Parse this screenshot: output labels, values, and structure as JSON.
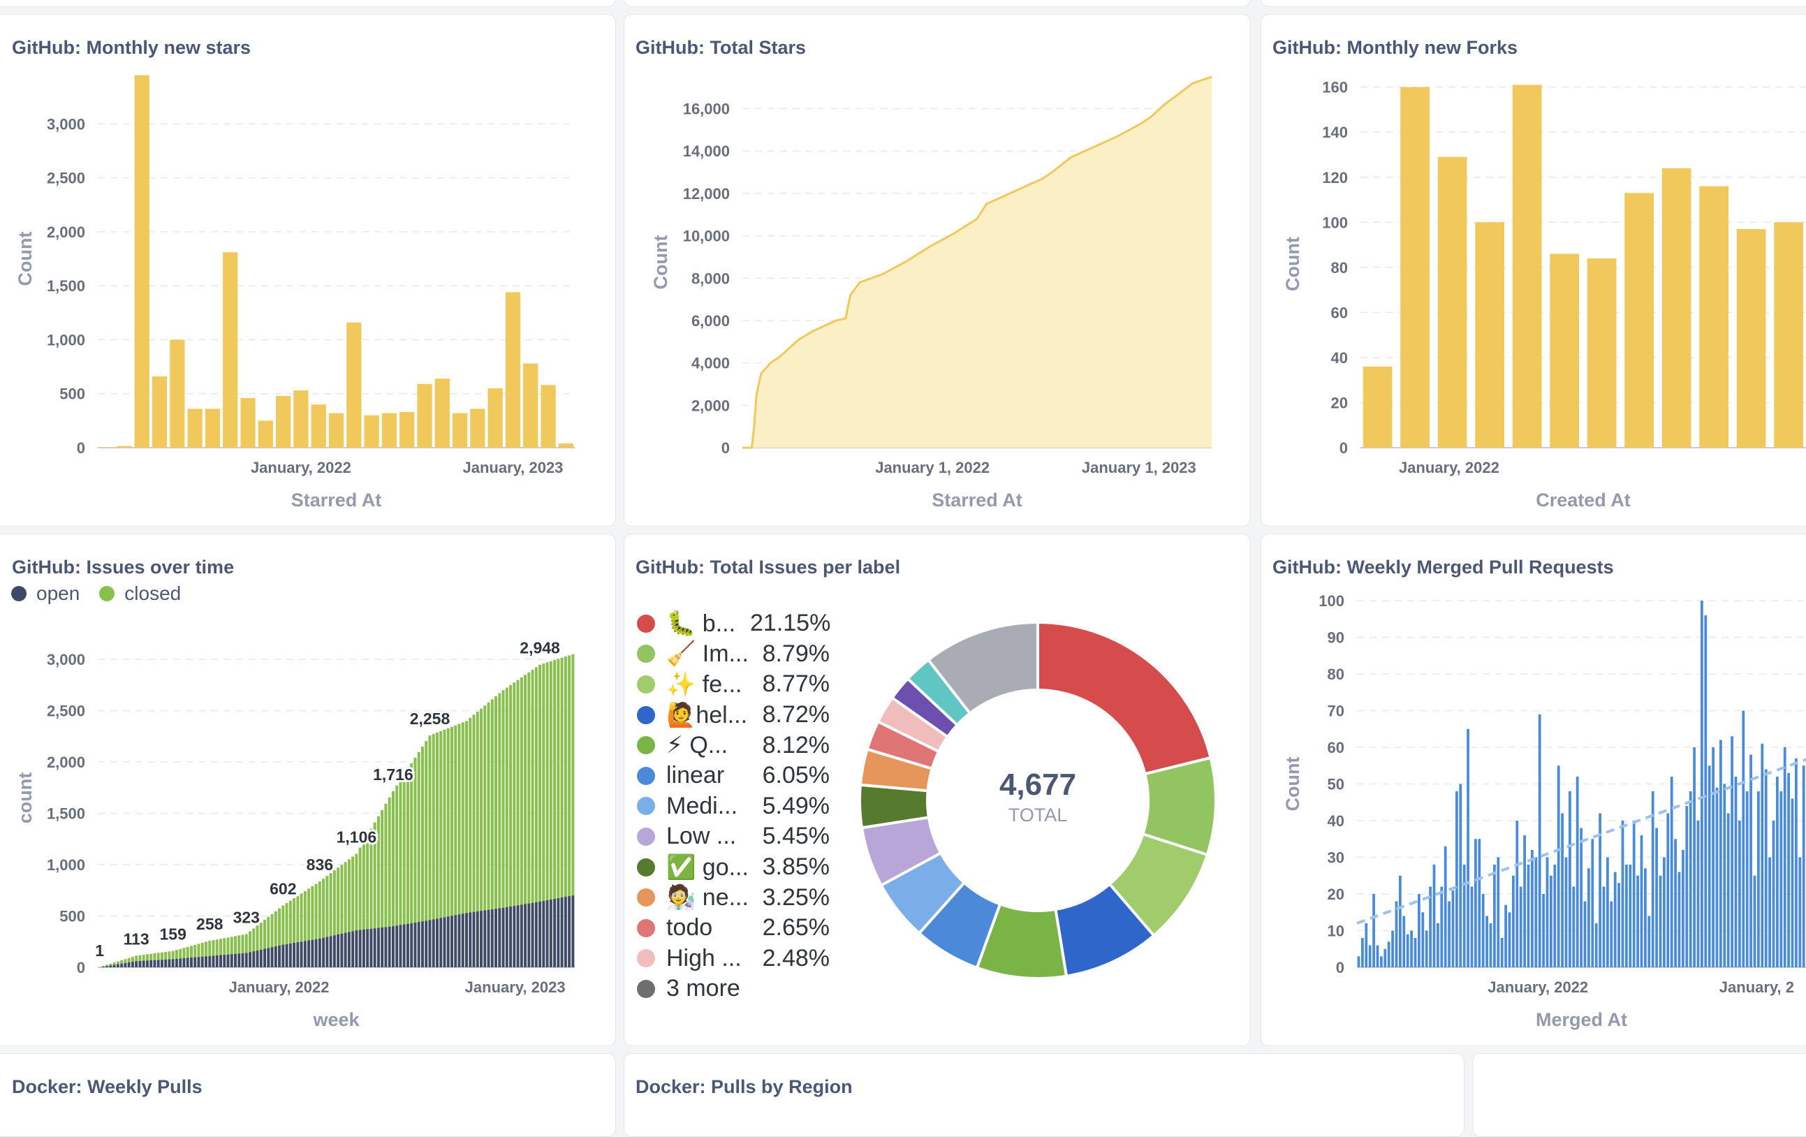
{
  "colors": {
    "yellow": "#f1c85b",
    "yellow_fill": "#fbefc6",
    "navy": "#3f4a66",
    "green": "#88bf4d",
    "blue": "#4a8bd9"
  },
  "cards": {
    "monthly_stars": {
      "title": "GitHub: Monthly new stars"
    },
    "total_stars": {
      "title": "GitHub: Total Stars"
    },
    "monthly_forks": {
      "title": "GitHub: Monthly new Forks"
    },
    "issues_over_time": {
      "title": "GitHub: Issues over time"
    },
    "issues_per_label": {
      "title": "GitHub: Total Issues per label"
    },
    "merged_prs": {
      "title": "GitHub: Weekly Merged Pull Requests"
    },
    "docker_weekly": {
      "title": "Docker: Weekly Pulls"
    },
    "docker_region": {
      "title": "Docker: Pulls by Region"
    }
  },
  "chart_data": [
    {
      "id": "monthly_stars",
      "type": "bar",
      "title": "GitHub: Monthly new stars",
      "xlabel": "Starred At",
      "ylabel": "Count",
      "ylim": [
        0,
        3500
      ],
      "yticks": [
        0,
        500,
        1000,
        1500,
        2000,
        2500,
        3000
      ],
      "ytick_labels": [
        "0",
        "500",
        "1,000",
        "1,500",
        "2,000",
        "2,500",
        "3,000"
      ],
      "xtick_labels": [
        {
          "label": "January, 2022",
          "index": 11.5
        },
        {
          "label": "January, 2023",
          "index": 23.5
        }
      ],
      "values": [
        5,
        15,
        3450,
        660,
        1000,
        360,
        360,
        1810,
        460,
        250,
        480,
        530,
        400,
        320,
        1160,
        300,
        320,
        330,
        590,
        640,
        320,
        360,
        550,
        1440,
        780,
        580,
        40
      ]
    },
    {
      "id": "total_stars",
      "type": "area",
      "title": "GitHub: Total Stars",
      "xlabel": "Starred At",
      "ylabel": "Count",
      "ylim": [
        0,
        17500
      ],
      "yticks": [
        0,
        2000,
        4000,
        6000,
        8000,
        10000,
        12000,
        14000,
        16000
      ],
      "ytick_labels": [
        "0",
        "2,000",
        "4,000",
        "6,000",
        "8,000",
        "10,000",
        "12,000",
        "14,000",
        "16,000"
      ],
      "xtick_labels": [
        {
          "label": "January 1, 2022",
          "t": 0.405
        },
        {
          "label": "January 1, 2023",
          "t": 0.845
        }
      ],
      "points": [
        [
          0,
          0
        ],
        [
          0.02,
          0
        ],
        [
          0.025,
          1000
        ],
        [
          0.03,
          2500
        ],
        [
          0.04,
          3500
        ],
        [
          0.06,
          4000
        ],
        [
          0.08,
          4300
        ],
        [
          0.1,
          4700
        ],
        [
          0.12,
          5100
        ],
        [
          0.15,
          5500
        ],
        [
          0.2,
          6000
        ],
        [
          0.22,
          6100
        ],
        [
          0.23,
          7200
        ],
        [
          0.25,
          7800
        ],
        [
          0.3,
          8200
        ],
        [
          0.35,
          8800
        ],
        [
          0.4,
          9500
        ],
        [
          0.45,
          10100
        ],
        [
          0.5,
          10800
        ],
        [
          0.52,
          11500
        ],
        [
          0.55,
          11800
        ],
        [
          0.6,
          12300
        ],
        [
          0.64,
          12700
        ],
        [
          0.66,
          13000
        ],
        [
          0.7,
          13700
        ],
        [
          0.75,
          14200
        ],
        [
          0.8,
          14700
        ],
        [
          0.85,
          15300
        ],
        [
          0.87,
          15600
        ],
        [
          0.9,
          16200
        ],
        [
          0.93,
          16700
        ],
        [
          0.96,
          17200
        ],
        [
          1,
          17500
        ]
      ]
    },
    {
      "id": "monthly_forks",
      "type": "bar",
      "title": "GitHub: Monthly new Forks",
      "xlabel": "Created At",
      "ylabel": "Count",
      "ylim": [
        0,
        163
      ],
      "yticks": [
        0,
        20,
        40,
        60,
        80,
        100,
        120,
        140,
        160
      ],
      "ytick_labels": [
        "0",
        "20",
        "40",
        "60",
        "80",
        "100",
        "120",
        "140",
        "160"
      ],
      "xtick_labels": [
        {
          "label": "January, 2022",
          "index": 1.4
        }
      ],
      "values": [
        36,
        160,
        129,
        100,
        161,
        86,
        84,
        113,
        124,
        116,
        97,
        100
      ]
    },
    {
      "id": "issues_over_time",
      "type": "bar",
      "stacked": true,
      "title": "GitHub: Issues over time",
      "xlabel": "week",
      "ylabel": "count",
      "ylim": [
        0,
        3300
      ],
      "yticks": [
        0,
        500,
        1000,
        1500,
        2000,
        2500,
        3000
      ],
      "ytick_labels": [
        "0",
        "500",
        "1,000",
        "1,500",
        "2,000",
        "2,500",
        "3,000"
      ],
      "xtick_labels": [
        {
          "label": "January, 2022",
          "t": 0.38
        },
        {
          "label": "January, 2023",
          "t": 0.875
        }
      ],
      "legend": [
        "open",
        "closed"
      ],
      "weeks": 130,
      "totals_anchor": [
        [
          0,
          1
        ],
        [
          10,
          113
        ],
        [
          20,
          159
        ],
        [
          30,
          258
        ],
        [
          40,
          323
        ],
        [
          50,
          602
        ],
        [
          60,
          836
        ],
        [
          70,
          1106
        ],
        [
          80,
          1716
        ],
        [
          90,
          2258
        ],
        [
          100,
          2400
        ],
        [
          110,
          2700
        ],
        [
          120,
          2948
        ],
        [
          129,
          3050
        ]
      ],
      "open_anchor": [
        [
          0,
          0
        ],
        [
          10,
          60
        ],
        [
          20,
          80
        ],
        [
          30,
          110
        ],
        [
          40,
          140
        ],
        [
          50,
          220
        ],
        [
          60,
          280
        ],
        [
          70,
          360
        ],
        [
          80,
          400
        ],
        [
          90,
          460
        ],
        [
          100,
          530
        ],
        [
          110,
          580
        ],
        [
          120,
          640
        ],
        [
          129,
          700
        ]
      ],
      "data_labels": [
        {
          "i": 0,
          "v": "1"
        },
        {
          "i": 10,
          "v": "113"
        },
        {
          "i": 20,
          "v": "159"
        },
        {
          "i": 30,
          "v": "258"
        },
        {
          "i": 40,
          "v": "323"
        },
        {
          "i": 50,
          "v": "602"
        },
        {
          "i": 60,
          "v": "836"
        },
        {
          "i": 70,
          "v": "1,106"
        },
        {
          "i": 80,
          "v": "1,716"
        },
        {
          "i": 90,
          "v": "2,258"
        },
        {
          "i": 120,
          "v": "2,948"
        }
      ]
    },
    {
      "id": "issues_per_label",
      "type": "pie",
      "title": "GitHub: Total Issues per label",
      "total": "4,677",
      "total_label": "TOTAL",
      "slices": [
        {
          "label": "🐛 b...",
          "pct": 21.15,
          "pct_label": "21.15%",
          "color": "#d64c4c"
        },
        {
          "label": "🧹 Im...",
          "pct": 8.79,
          "pct_label": "8.79%",
          "color": "#92c562"
        },
        {
          "label": "✨ fe...",
          "pct": 8.77,
          "pct_label": "8.77%",
          "color": "#a0cc6c"
        },
        {
          "label": "🙋hel...",
          "pct": 8.72,
          "pct_label": "8.72%",
          "color": "#2e67c9"
        },
        {
          "label": "⚡ Q...",
          "pct": 8.12,
          "pct_label": "8.12%",
          "color": "#7ab447"
        },
        {
          "label": "linear",
          "pct": 6.05,
          "pct_label": "6.05%",
          "color": "#4c89d9"
        },
        {
          "label": "Medi...",
          "pct": 5.49,
          "pct_label": "5.49%",
          "color": "#7baee9"
        },
        {
          "label": "Low ...",
          "pct": 5.45,
          "pct_label": "5.45%",
          "color": "#b8a6d8"
        },
        {
          "label": "✅ go...",
          "pct": 3.85,
          "pct_label": "3.85%",
          "color": "#577b2e"
        },
        {
          "label": "🧑‍🔬 ne...",
          "pct": 3.25,
          "pct_label": "3.25%",
          "color": "#e6965a"
        },
        {
          "label": "todo",
          "pct": 2.65,
          "pct_label": "2.65%",
          "color": "#e07575"
        },
        {
          "label": "High ...",
          "pct": 2.48,
          "pct_label": "2.48%",
          "color": "#f0bcbc"
        },
        {
          "label": "3 more",
          "pct": 15.23,
          "pct_label": "",
          "color": "#6e6e6e"
        }
      ],
      "more_slices": [
        {
          "pct": 2.2,
          "color": "#6d4fb0"
        },
        {
          "pct": 2.5,
          "color": "#5fc6c4"
        },
        {
          "pct": 10.53,
          "color": "#a9acb4"
        }
      ]
    },
    {
      "id": "merged_prs",
      "type": "bar",
      "title": "GitHub: Weekly Merged Pull Requests",
      "xlabel": "Merged At",
      "ylabel": "Count",
      "ylim": [
        0,
        100
      ],
      "yticks": [
        0,
        10,
        20,
        30,
        40,
        50,
        60,
        70,
        80,
        90,
        100
      ],
      "ytick_labels": [
        "0",
        "10",
        "20",
        "30",
        "40",
        "50",
        "60",
        "70",
        "80",
        "90",
        "100"
      ],
      "xtick_labels": [
        {
          "label": "January, 2022",
          "index": 48
        },
        {
          "label": "January, 2",
          "index": 106
        }
      ],
      "trendline": [
        [
          0,
          12
        ],
        [
          120,
          57
        ]
      ],
      "values": [
        3,
        8,
        12,
        6,
        20,
        6,
        3,
        5,
        7,
        10,
        18,
        25,
        14,
        9,
        10,
        8,
        20,
        15,
        10,
        22,
        28,
        12,
        22,
        33,
        18,
        21,
        48,
        50,
        28,
        65,
        22,
        35,
        35,
        20,
        14,
        12,
        28,
        30,
        8,
        17,
        15,
        25,
        40,
        22,
        36,
        28,
        32,
        30,
        69,
        20,
        30,
        25,
        28,
        55,
        42,
        30,
        48,
        22,
        52,
        38,
        18,
        27,
        35,
        12,
        42,
        22,
        30,
        18,
        26,
        23,
        40,
        28,
        28,
        40,
        25,
        36,
        27,
        14,
        48,
        38,
        25,
        30,
        42,
        52,
        35,
        26,
        32,
        44,
        48,
        60,
        40,
        100,
        96,
        55,
        60,
        49,
        62,
        50,
        42,
        63,
        52,
        40,
        70,
        48,
        58,
        25,
        48,
        61,
        54,
        30,
        40,
        52,
        48,
        60,
        53,
        46,
        57,
        30,
        55,
        45
      ]
    }
  ]
}
